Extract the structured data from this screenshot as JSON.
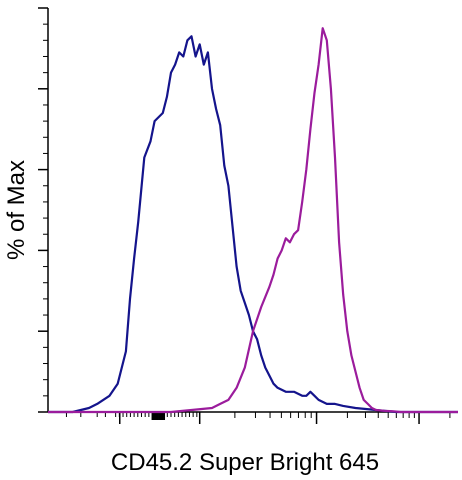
{
  "chart_data": {
    "type": "line",
    "title": "",
    "xlabel": "CD45.2 Super Bright 645",
    "ylabel": "% of Max",
    "x_scale": "biexponential (unlabeled ticks)",
    "ylim": [
      0,
      100
    ],
    "grid": false,
    "legend": "none",
    "series": [
      {
        "color": "#14148c",
        "x": [
          0,
          0.03,
          0.06,
          0.08,
          0.1,
          0.12,
          0.15,
          0.17,
          0.19,
          0.2,
          0.21,
          0.22,
          0.235,
          0.25,
          0.26,
          0.28,
          0.29,
          0.3,
          0.31,
          0.32,
          0.33,
          0.34,
          0.35,
          0.36,
          0.37,
          0.38,
          0.39,
          0.4,
          0.41,
          0.42,
          0.43,
          0.44,
          0.45,
          0.46,
          0.47,
          0.48,
          0.49,
          0.5,
          0.51,
          0.52,
          0.53,
          0.54,
          0.55,
          0.56,
          0.58,
          0.6,
          0.62,
          0.63,
          0.64,
          0.65,
          0.66,
          0.68,
          0.7,
          0.72,
          0.75,
          0.8,
          0.85,
          0.9,
          1.0
        ],
        "y": [
          0,
          0,
          0,
          0.5,
          1,
          2,
          4,
          7,
          15,
          28,
          38,
          47,
          63,
          67,
          72,
          74,
          78,
          84,
          86,
          89,
          88,
          92,
          93,
          88,
          91,
          86,
          89,
          80,
          75,
          71,
          61,
          56,
          46,
          36,
          30,
          27,
          24,
          20,
          18,
          14,
          11,
          9,
          7,
          6,
          5,
          5,
          4,
          4,
          5,
          4,
          3,
          2,
          2,
          1.5,
          1,
          0.5,
          0,
          0,
          0
        ]
      },
      {
        "color": "#9b1c9c",
        "x": [
          0,
          0.2,
          0.3,
          0.4,
          0.42,
          0.44,
          0.46,
          0.48,
          0.5,
          0.52,
          0.54,
          0.55,
          0.56,
          0.57,
          0.58,
          0.59,
          0.6,
          0.61,
          0.62,
          0.63,
          0.64,
          0.65,
          0.66,
          0.67,
          0.68,
          0.69,
          0.7,
          0.71,
          0.72,
          0.73,
          0.74,
          0.75,
          0.76,
          0.77,
          0.78,
          0.79,
          0.8,
          0.82,
          0.84,
          0.86,
          0.88,
          0.9,
          0.95,
          1.0
        ],
        "y": [
          0,
          0,
          0,
          1,
          2,
          3,
          6,
          11,
          20,
          26,
          31,
          34,
          38,
          40,
          43,
          42,
          44,
          45,
          52,
          60,
          70,
          79,
          86,
          95,
          92,
          80,
          63,
          42,
          29,
          20,
          14,
          10,
          6,
          3,
          2,
          1,
          0.5,
          0.3,
          0.2,
          0,
          0,
          0,
          0,
          0
        ]
      }
    ]
  }
}
